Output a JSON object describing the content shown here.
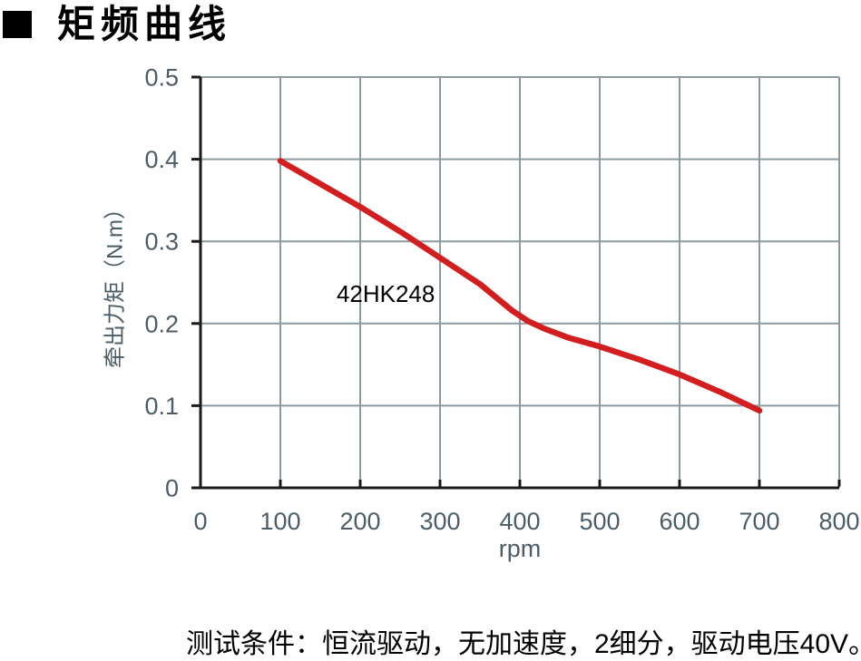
{
  "page": {
    "title": "矩频曲线",
    "footer_note": "测试条件：恒流驱动，无加速度，2细分，驱动电压40V。"
  },
  "colors": {
    "curve_red": "#d21e1e",
    "grid": "#8c9aa1",
    "axis": "#1b1b1b",
    "tick_text": "#4c5d68",
    "annotation_text": "#000000"
  },
  "chart_data": {
    "type": "line",
    "title": "矩频曲线",
    "xlabel": "rpm",
    "ylabel": "牵出力矩（N.m）",
    "xlim": [
      0,
      800
    ],
    "ylim": [
      0,
      0.5
    ],
    "grid": true,
    "legend_position": "none",
    "xtick_values": [
      0,
      100,
      200,
      300,
      400,
      500,
      600,
      700,
      800
    ],
    "xtick_labels": [
      "0",
      "100",
      "200",
      "300",
      "400",
      "500",
      "600",
      "700",
      "800"
    ],
    "ytick_values": [
      0,
      0.1,
      0.2,
      0.3,
      0.4,
      0.5
    ],
    "ytick_labels": [
      "0",
      "0.1",
      "0.2",
      "0.3",
      "0.4",
      "0.5"
    ],
    "series": [
      {
        "name": "42HK248",
        "points": [
          [
            100,
            0.398
          ],
          [
            150,
            0.37
          ],
          [
            200,
            0.342
          ],
          [
            250,
            0.312
          ],
          [
            300,
            0.28
          ],
          [
            350,
            0.248
          ],
          [
            390,
            0.216
          ],
          [
            410,
            0.203
          ],
          [
            430,
            0.194
          ],
          [
            460,
            0.183
          ],
          [
            500,
            0.172
          ],
          [
            550,
            0.156
          ],
          [
            600,
            0.138
          ],
          [
            650,
            0.117
          ],
          [
            700,
            0.094
          ]
        ]
      }
    ],
    "annotation": {
      "text": "42HK248",
      "x": 232,
      "y": 0.226
    },
    "test_conditions": "测试条件：恒流驱动，无加速度，2细分，驱动电压40V。"
  }
}
